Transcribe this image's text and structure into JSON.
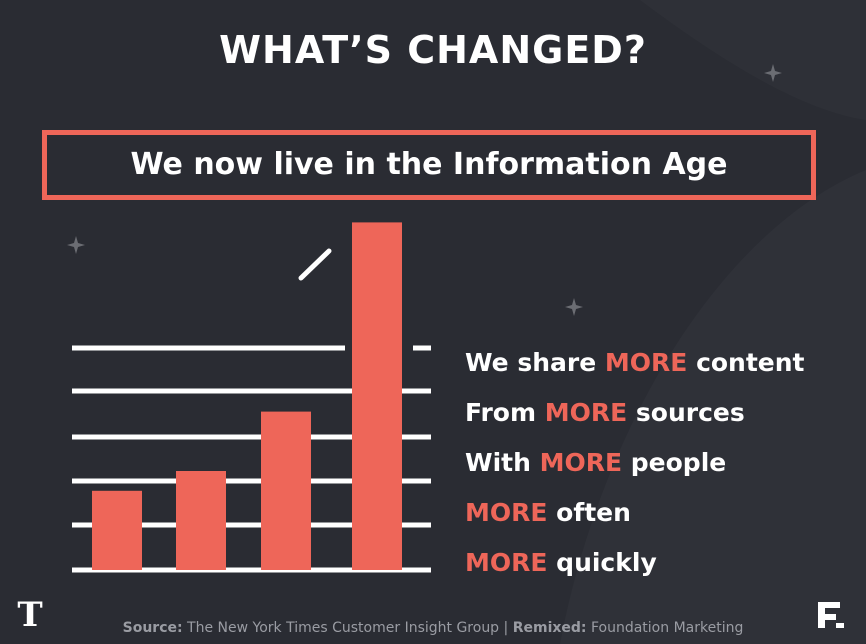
{
  "title": "WHAT’S CHANGED?",
  "banner": "We now live in the Information Age",
  "bullets": [
    {
      "before": "We share ",
      "highlight": "MORE",
      "after": " content"
    },
    {
      "before": "From ",
      "highlight": "MORE",
      "after": " sources"
    },
    {
      "before": "With ",
      "highlight": "MORE",
      "after": " people"
    },
    {
      "before": "",
      "highlight": "MORE",
      "after": " often"
    },
    {
      "before": "",
      "highlight": "MORE",
      "after": " quickly"
    }
  ],
  "footer": {
    "source_label": "Source:",
    "source_text": " The New York Times Customer Insight Group | ",
    "remix_label": "Remixed:",
    "remix_text": " Foundation Marketing"
  },
  "logos": {
    "left_icon": "nyt-t-logo-icon",
    "left_glyph": "T",
    "right_icon": "foundation-f-logo-icon"
  },
  "colors": {
    "background": "#2a2c33",
    "accent": "#ee6659",
    "text": "#ffffff"
  },
  "bars": [
    0.18,
    0.225,
    0.36,
    0.79
  ]
}
